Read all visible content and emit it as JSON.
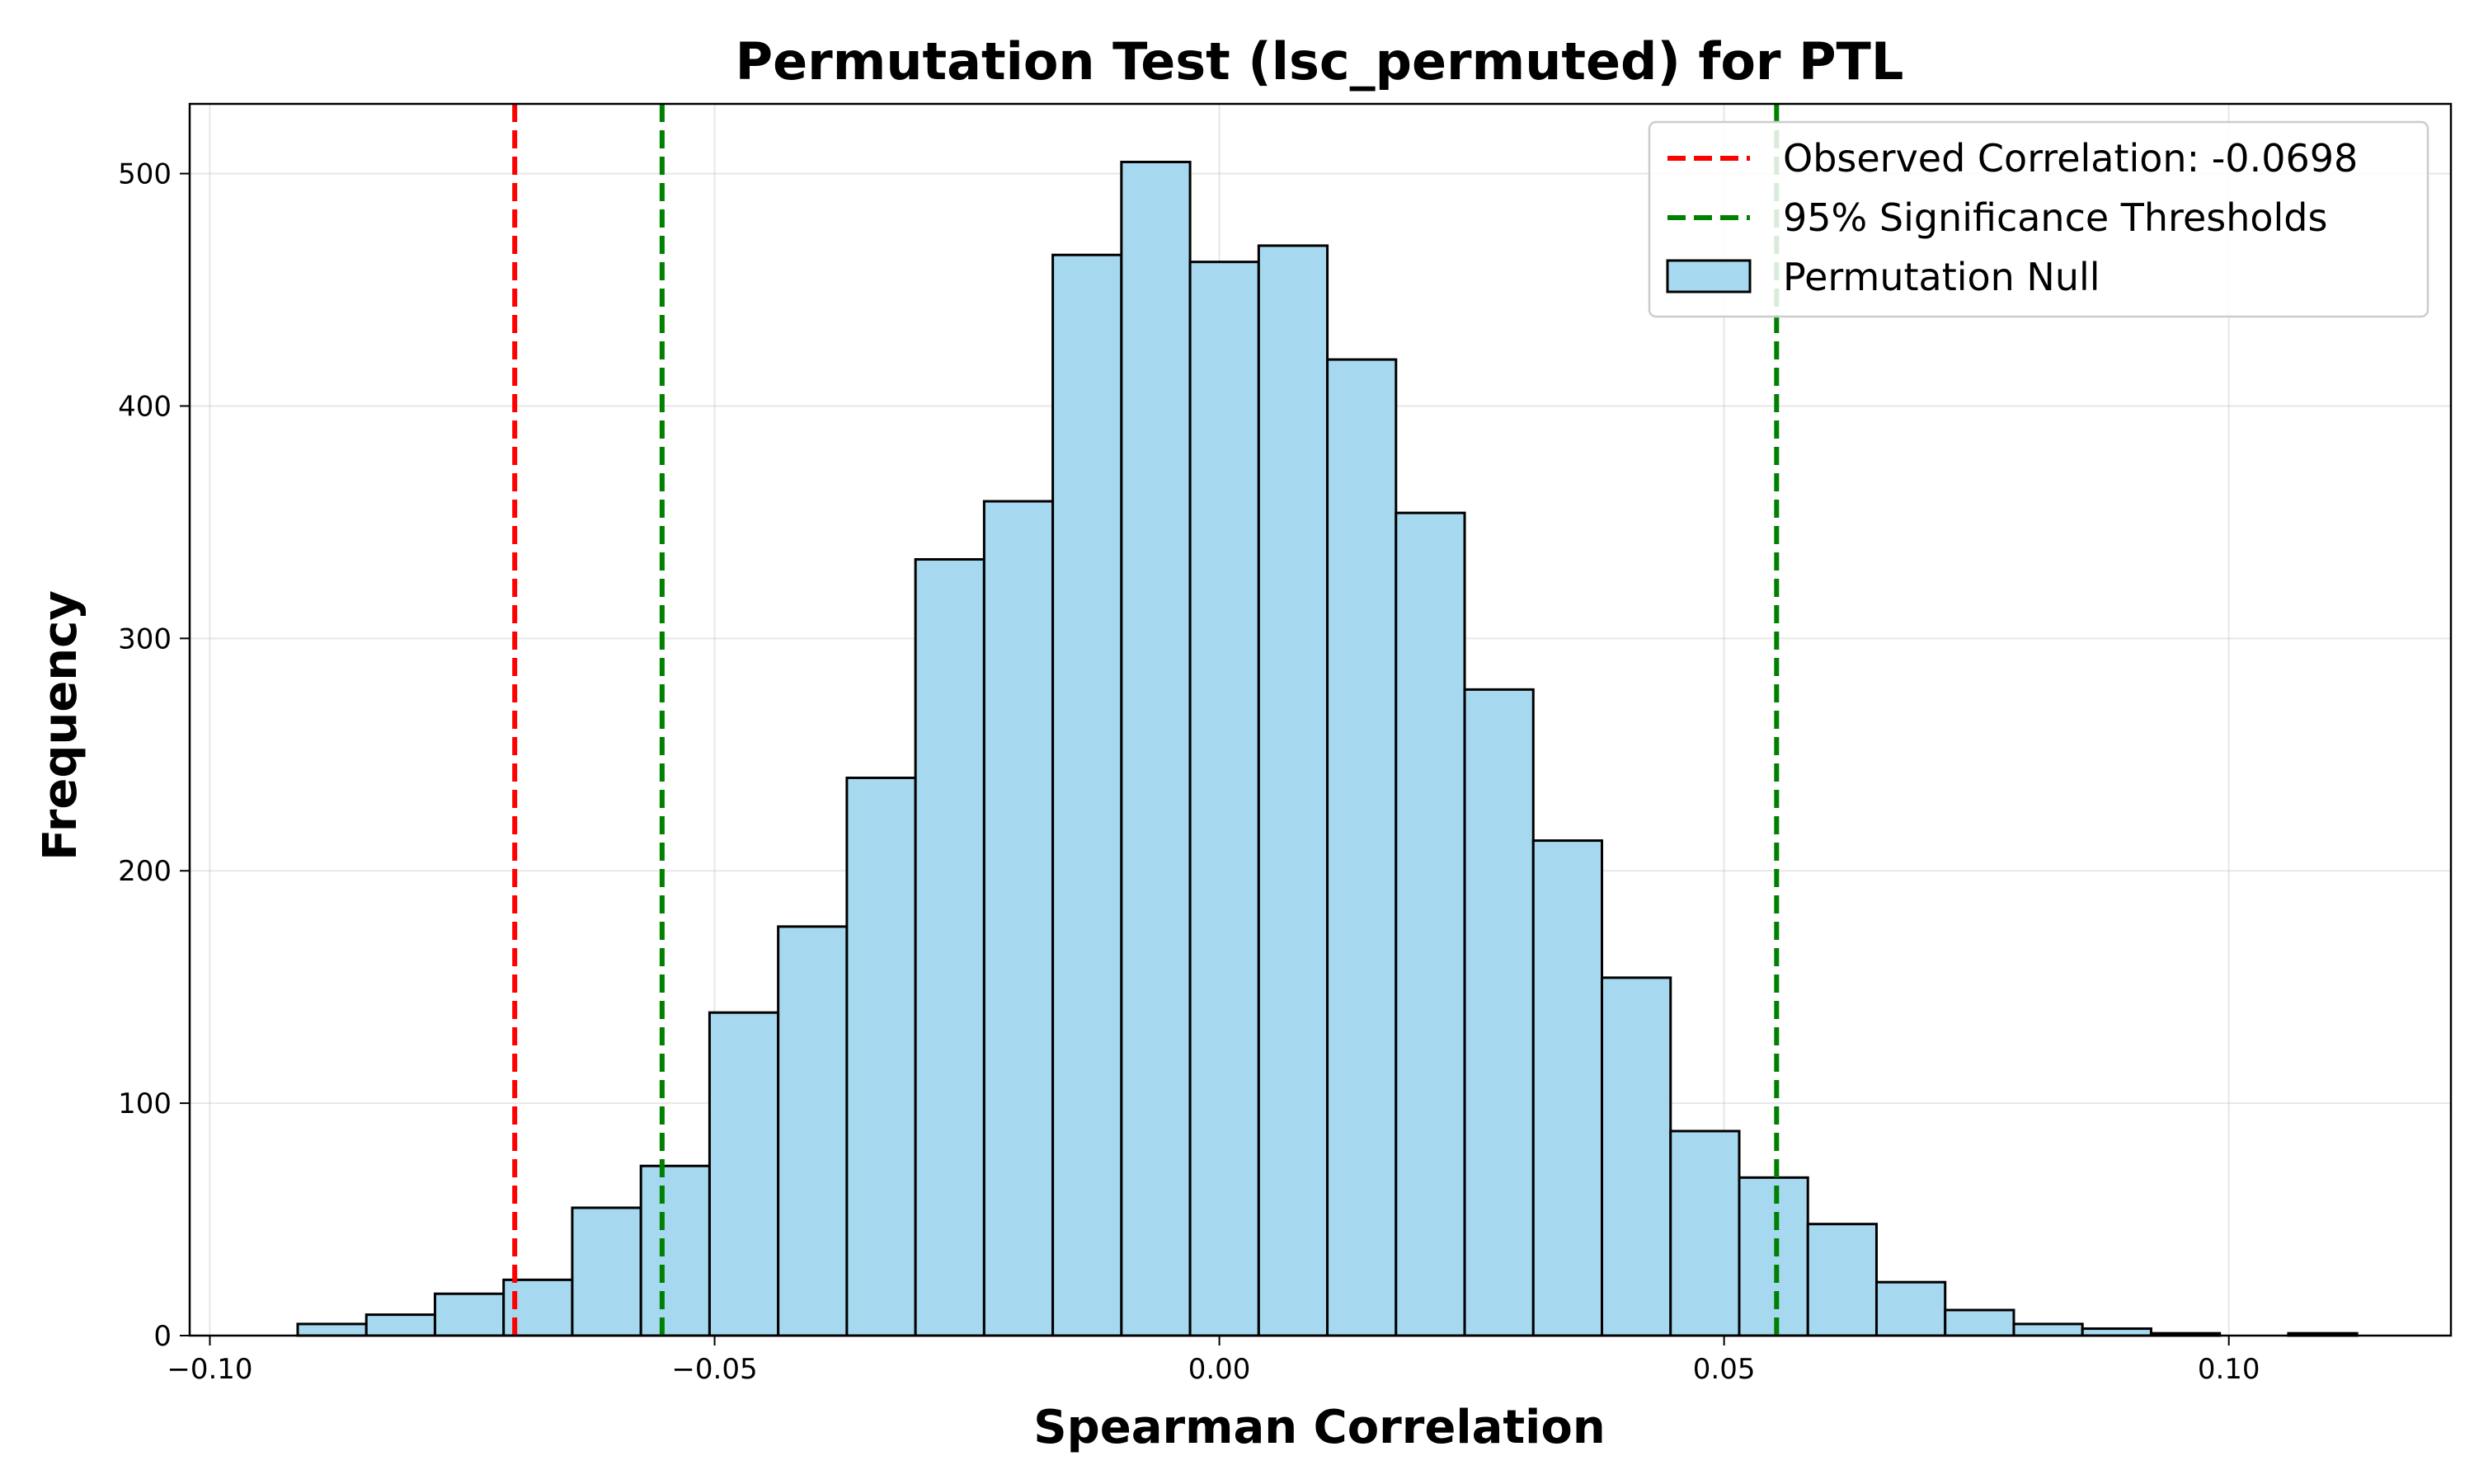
{
  "chart_data": {
    "type": "bar",
    "title": "Permutation Test (lsc_permuted) for PTL",
    "xlabel": "Spearman Correlation",
    "ylabel": "Frequency",
    "xlim": [
      -0.102,
      0.122
    ],
    "ylim": [
      0,
      530
    ],
    "grid": true,
    "legend_position": "top-right",
    "x_ticks": [
      -0.1,
      -0.05,
      0.0,
      0.05,
      0.1
    ],
    "x_tick_labels": [
      "−0.10",
      "−0.05",
      "0.00",
      "0.05",
      "0.10"
    ],
    "y_ticks": [
      0,
      100,
      200,
      300,
      400,
      500
    ],
    "y_tick_labels": [
      "0",
      "100",
      "200",
      "300",
      "400",
      "500"
    ],
    "histogram": {
      "name": "Permutation Null",
      "fill_color": "#a6d9ef",
      "edge_color": "#000000",
      "bin_edges": [
        -0.0913,
        -0.0845,
        -0.0777,
        -0.0709,
        -0.0641,
        -0.0573,
        -0.0505,
        -0.0437,
        -0.0369,
        -0.0301,
        -0.0233,
        -0.0165,
        -0.0097,
        -0.0029,
        0.0039,
        0.0107,
        0.0175,
        0.0243,
        0.0311,
        0.0379,
        0.0447,
        0.0515,
        0.0583,
        0.0651,
        0.0719,
        0.0787,
        0.0855,
        0.0923,
        0.0991,
        0.1059,
        0.1127
      ],
      "counts": [
        5,
        9,
        18,
        24,
        55,
        73,
        139,
        176,
        240,
        334,
        359,
        465,
        505,
        462,
        469,
        420,
        354,
        278,
        213,
        154,
        88,
        68,
        48,
        23,
        11,
        5,
        3,
        1,
        0,
        1
      ]
    },
    "lines": [
      {
        "name": "Observed Correlation: -0.0698",
        "x": -0.0698,
        "color": "#ff0000"
      },
      {
        "name": "95% Significance Thresholds",
        "x": [
          -0.0552,
          0.0552
        ],
        "color": "#008000"
      }
    ]
  }
}
